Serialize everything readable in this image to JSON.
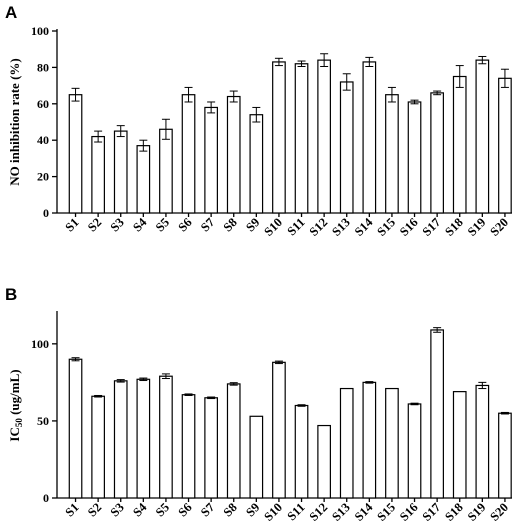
{
  "chart_data": [
    {
      "panel": "A",
      "type": "bar",
      "ylabel": "NO inhibition rate (%)",
      "ylim": [
        0,
        100
      ],
      "yticks": [
        0,
        20,
        40,
        60,
        80,
        100
      ],
      "categories": [
        "S1",
        "S2",
        "S3",
        "S4",
        "S5",
        "S6",
        "S7",
        "S8",
        "S9",
        "S10",
        "S11",
        "S12",
        "S13",
        "S14",
        "S15",
        "S16",
        "S17",
        "S18",
        "S19",
        "S20"
      ],
      "values": [
        65,
        42,
        45,
        37,
        46,
        65,
        58,
        64,
        54,
        83,
        82,
        84,
        72,
        83,
        65,
        61,
        66,
        75,
        84,
        74
      ],
      "errors": [
        3.5,
        3,
        3,
        3,
        5.5,
        4,
        3,
        3,
        4,
        2,
        1.5,
        3.5,
        4.5,
        2.5,
        4,
        1,
        1,
        6,
        2,
        5
      ],
      "grid": false,
      "legend": false
    },
    {
      "panel": "B",
      "type": "bar",
      "ylabel": "IC50 (ug/mL)",
      "ylim": [
        0,
        120
      ],
      "yticks": [
        0,
        50,
        100
      ],
      "categories": [
        "S1",
        "S2",
        "S3",
        "S4",
        "S5",
        "S6",
        "S7",
        "S8",
        "S9",
        "S10",
        "S11",
        "S12",
        "S13",
        "S14",
        "S15",
        "S16",
        "S17",
        "S18",
        "S19",
        "S20"
      ],
      "values": [
        90,
        66,
        76,
        77,
        79,
        67,
        65,
        74,
        53,
        88,
        60,
        47,
        71,
        75,
        71,
        61,
        109,
        69,
        73,
        55
      ],
      "errors": [
        1,
        0.5,
        0.8,
        0.8,
        1.5,
        0.5,
        0.5,
        0.8,
        0,
        0.8,
        0.5,
        0,
        0,
        0.5,
        0,
        0.5,
        1.5,
        0,
        2,
        0.5
      ],
      "grid": false,
      "legend": false
    }
  ]
}
